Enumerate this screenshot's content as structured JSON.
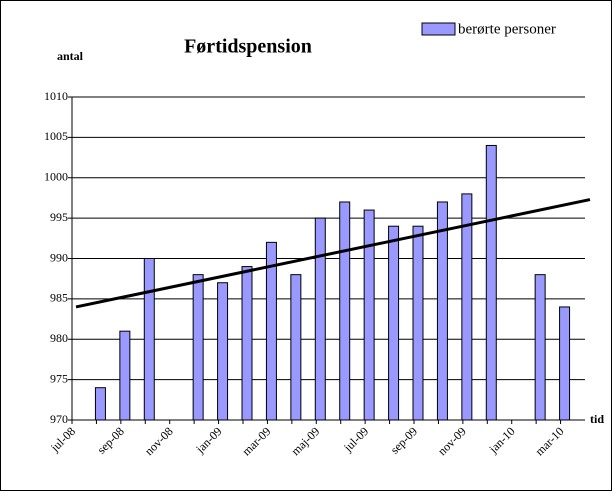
{
  "chart_data": {
    "type": "bar",
    "title": "Førtidspension",
    "y_label": "antal",
    "x_label": "tid",
    "categories": [
      "jul-08",
      null,
      "sep-08",
      null,
      "nov-08",
      null,
      "jan-09",
      null,
      "mar-09",
      null,
      "maj-09",
      null,
      "jul-09",
      null,
      "sep-09",
      null,
      "nov-09",
      null,
      "jan-10",
      null,
      "mar-10"
    ],
    "series": [
      {
        "name": "berørte personer",
        "color": "#9999ff",
        "values": [
          null,
          974,
          981,
          990,
          null,
          988,
          987,
          989,
          992,
          988,
          995,
          997,
          996,
          994,
          994,
          997,
          998,
          1004,
          null,
          988,
          984
        ]
      }
    ],
    "trendline": {
      "color": "#000000",
      "values": [
        984,
        997.3
      ]
    },
    "ylim": [
      970,
      1010
    ],
    "yticks": [
      970,
      975,
      980,
      985,
      990,
      995,
      1000,
      1005,
      1010
    ],
    "grid": true,
    "legend": "top-right"
  }
}
